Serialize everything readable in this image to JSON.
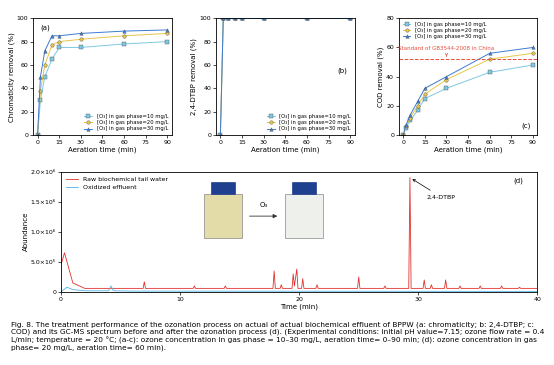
{
  "chart_data": [
    {
      "type": "line",
      "panel_label": "(a)",
      "x_label": "Aeration time (min)",
      "y_label": "Chromaticity removal (%)",
      "x": [
        0,
        2,
        5,
        10,
        15,
        30,
        60,
        90
      ],
      "xlim": [
        -3,
        93
      ],
      "xticks": [
        0,
        15,
        30,
        45,
        60,
        75,
        90
      ],
      "ylim": [
        0,
        100
      ],
      "yticks": [
        0,
        20,
        40,
        60,
        80,
        100
      ],
      "legend": "lower right",
      "series": [
        {
          "name": "[O₃] in gas phase=10 mg/L",
          "color": "#7ec8e3",
          "marker": "square",
          "values": [
            0,
            30,
            50,
            65,
            75,
            75,
            78,
            80
          ]
        },
        {
          "name": "[O₃] in gas phase=20 mg/L",
          "color": "#e8c64a",
          "marker": "circle",
          "values": [
            0,
            38,
            60,
            77,
            80,
            82,
            85,
            87
          ]
        },
        {
          "name": "[O₃] in gas phase=30 mg/L",
          "color": "#3a7bd5",
          "marker": "triangle",
          "values": [
            0,
            50,
            72,
            85,
            85,
            87,
            89,
            90
          ]
        }
      ]
    },
    {
      "type": "line",
      "panel_label": "(b)",
      "x_label": "Aeration time (min)",
      "y_label": "2,4-DTBP removal (%)",
      "x": [
        0,
        2,
        5,
        10,
        15,
        30,
        60,
        90
      ],
      "xlim": [
        -3,
        93
      ],
      "xticks": [
        0,
        15,
        30,
        45,
        60,
        75,
        90
      ],
      "ylim": [
        0,
        100
      ],
      "yticks": [
        0,
        20,
        40,
        60,
        80,
        100
      ],
      "legend": "lower right",
      "series": [
        {
          "name": "[O₃] in gas phase=10 mg/L",
          "color": "#7ec8e3",
          "marker": "square",
          "values": [
            0,
            100,
            100,
            100,
            100,
            100,
            100,
            100
          ]
        },
        {
          "name": "[O₃] in gas phase=20 mg/L",
          "color": "#e8c64a",
          "marker": "circle",
          "values": [
            0,
            100,
            100,
            100,
            100,
            100,
            100,
            100
          ]
        },
        {
          "name": "[O₃] in gas phase=30 mg/L",
          "color": "#3a7bd5",
          "marker": "triangle",
          "values": [
            0,
            100,
            100,
            100,
            100,
            100,
            100,
            100
          ]
        }
      ]
    },
    {
      "type": "line",
      "panel_label": "(c)",
      "x_label": "Aeration time (min)",
      "y_label": "COD removal (%)",
      "x": [
        0,
        2,
        5,
        10,
        15,
        30,
        60,
        90
      ],
      "xlim": [
        -3,
        93
      ],
      "xticks": [
        0,
        15,
        30,
        45,
        60,
        75,
        90
      ],
      "ylim": [
        0,
        80
      ],
      "yticks": [
        0,
        20,
        40,
        60,
        80
      ],
      "legend": "upper left",
      "reference": {
        "value": 52,
        "label": "Standard of GB3544-2008 in China",
        "color": "#e74c3c",
        "x": 30
      },
      "series": [
        {
          "name": "[O₃] in gas phase=10 mg/L",
          "color": "#7ec8e3",
          "marker": "square",
          "values": [
            0,
            5,
            10,
            17,
            25,
            32,
            43,
            48
          ]
        },
        {
          "name": "[O₃] in gas phase=20 mg/L",
          "color": "#e8c64a",
          "marker": "circle",
          "values": [
            0,
            6,
            12,
            20,
            28,
            38,
            52,
            56
          ]
        },
        {
          "name": "[O₃] in gas phase=30 mg/L",
          "color": "#3a7bd5",
          "marker": "triangle",
          "values": [
            0,
            7,
            14,
            23,
            32,
            40,
            56,
            60
          ]
        }
      ]
    },
    {
      "type": "line",
      "panel_label": "(d)",
      "x_label": "Time (min)",
      "y_label": "Abundance",
      "xlim": [
        0,
        40
      ],
      "xticks": [
        0,
        10,
        20,
        30,
        40
      ],
      "ylim": [
        0,
        2000000
      ],
      "yticks": [
        0,
        {
          "value": 500000,
          "label": "5.0×10⁵"
        },
        {
          "value": 1000000,
          "label": "1.0×10⁶"
        },
        {
          "value": 1500000,
          "label": "1.5×10⁶"
        },
        {
          "value": 2000000,
          "label": "2.0×10⁶"
        }
      ],
      "legend": "upper left",
      "annotation": {
        "text": "2,4-DTBP",
        "x": 29.3,
        "y": 1900000
      },
      "inset_label": "O₃",
      "series": [
        {
          "name": "Raw biochemical tail water",
          "color": "#e0312f",
          "x": [
            0,
            0.3,
            1.0,
            2.0,
            6.9,
            7.0,
            7.1,
            11.1,
            11.2,
            11.3,
            13.7,
            13.8,
            13.9,
            17.8,
            17.9,
            18.0,
            18.4,
            18.5,
            18.6,
            19.4,
            19.5,
            19.6,
            19.8,
            19.9,
            20.2,
            20.3,
            20.4,
            21.4,
            21.5,
            21.6,
            24.9,
            25.0,
            25.1,
            27.1,
            27.2,
            27.3,
            29.2,
            29.3,
            29.4,
            30.4,
            30.5,
            30.6,
            31.0,
            31.1,
            31.2,
            32.2,
            32.3,
            32.4,
            33.4,
            33.5,
            33.6,
            35.1,
            35.2,
            35.3,
            36.9,
            37.0,
            37.1,
            38.4,
            38.5,
            38.6,
            40.0
          ],
          "values": [
            450000,
            650000,
            150000,
            60000,
            60000,
            170000,
            60000,
            60000,
            100000,
            60000,
            60000,
            100000,
            60000,
            60000,
            350000,
            60000,
            60000,
            120000,
            60000,
            60000,
            300000,
            100000,
            380000,
            60000,
            60000,
            220000,
            60000,
            60000,
            120000,
            60000,
            60000,
            250000,
            60000,
            60000,
            100000,
            60000,
            60000,
            1900000,
            60000,
            60000,
            200000,
            60000,
            60000,
            120000,
            60000,
            60000,
            200000,
            60000,
            60000,
            100000,
            60000,
            60000,
            100000,
            60000,
            60000,
            100000,
            60000,
            60000,
            80000,
            60000,
            60000
          ]
        },
        {
          "name": "Oxidized effluent",
          "color": "#4fb3e8",
          "x": [
            0,
            0.5,
            1.0,
            2.0,
            4.0,
            4.2,
            4.4,
            6.0,
            40.0
          ],
          "values": [
            0,
            80000,
            40000,
            20000,
            20000,
            100000,
            20000,
            15000,
            10000
          ]
        }
      ]
    }
  ],
  "caption": "Fig. 8. The treatment performance of the ozonation process on actual of actual biochemical effluent of BPPW (a: chromaticity; b: 2,4-DTBP; c: COD) and its GC-MS spectrum before and after the ozonation process (d). (Experimental conditions: initial pH value=7.15; ozone flow rate = 0.4 L/min; temperature = 20 °C; (a-c): ozone concentration in gas phase = 10–30 mg/L, aeration time= 0–90 min; (d): ozone concentration in gas phase= 20 mg/L, aeration time= 60 min)."
}
